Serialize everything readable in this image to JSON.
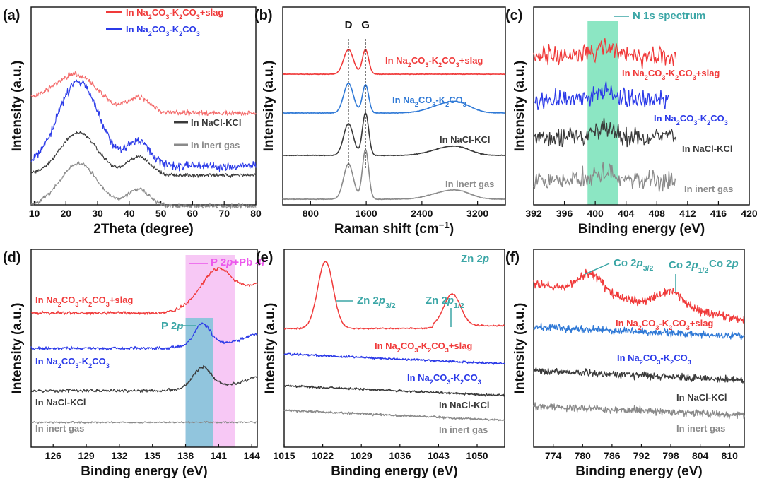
{
  "colors": {
    "red": "#f03a3a",
    "salmon": "#f46b6b",
    "blue": "#2b3ae8",
    "blue_light": "#2f79d6",
    "dark": "#3a3a3a",
    "gray": "#8a8a8a",
    "teal": "#3ba6a6",
    "green_band": "#6fe0b4",
    "magenta": "#ec57ec",
    "pink_band": "#f7c8f5",
    "cyan_band": "#7fc4d8"
  },
  "chart_data": [
    {
      "panel": "(a)",
      "type": "line",
      "xlabel": "2Theta (degree)",
      "ylabel": "Intensity (a.u.)",
      "xlim": [
        9,
        80
      ],
      "xticks": [
        10,
        20,
        30,
        40,
        50,
        60,
        70,
        80
      ],
      "legend": [
        {
          "parts": [
            [
              "In Na",
              ""
            ],
            [
              "2",
              "sub"
            ],
            [
              "CO",
              ""
            ],
            [
              "3",
              "sub"
            ],
            [
              "-K",
              ""
            ],
            [
              "2",
              "sub"
            ],
            [
              "CO",
              ""
            ],
            [
              "3",
              "sub"
            ],
            [
              "+slag",
              ""
            ]
          ],
          "color": "#f03a3a"
        },
        {
          "parts": [
            [
              "In Na",
              ""
            ],
            [
              "2",
              "sub"
            ],
            [
              "CO",
              ""
            ],
            [
              "3",
              "sub"
            ],
            [
              "-K",
              ""
            ],
            [
              "2",
              "sub"
            ],
            [
              "CO",
              ""
            ],
            [
              "3",
              "sub"
            ]
          ],
          "color": "#2b3ae8"
        }
      ],
      "series": [
        {
          "color": "#f46b6b",
          "offset": 150,
          "noise": 3.5,
          "peaks": [
            [
              23,
              55,
              7
            ],
            [
              43,
              22,
              3.5
            ]
          ],
          "end": 0
        },
        {
          "color": "#2b3ae8",
          "offset": 225,
          "noise": 6,
          "peaks": [
            [
              24,
              120,
              6.5
            ],
            [
              43,
              35,
              3.5
            ]
          ],
          "end": 0
        },
        {
          "color": "#3a3a3a",
          "offset": 238,
          "noise": 2.5,
          "peaks": [
            [
              24,
              60,
              6
            ],
            [
              43,
              26,
              3.5
            ]
          ],
          "end": 0
        },
        {
          "color": "#8a8a8a",
          "offset": 282,
          "noise": 3,
          "peaks": [
            [
              24,
              60,
              6
            ],
            [
              43,
              24,
              3.5
            ]
          ],
          "end": 0
        }
      ],
      "labels": [
        {
          "text": "In NaCl-KCl",
          "color": "#3a3a3a",
          "y": 178
        },
        {
          "text": "In inert gas",
          "color": "#8a8a8a",
          "y": 210
        }
      ]
    },
    {
      "panel": "(b)",
      "type": "line",
      "xlabel": "Raman shift (cm",
      "xlabel_sup": "−1",
      "xlabel_end": ")",
      "ylabel": "Intensity (a.u.)",
      "xlim": [
        400,
        3600
      ],
      "xticks": [
        800,
        1600,
        2400,
        3200
      ],
      "peak_labels": [
        "D",
        "G"
      ],
      "series": [
        {
          "color": "#f03a3a",
          "name_parts": [
            [
              "In Na",
              ""
            ],
            [
              "2",
              "sub"
            ],
            [
              "CO",
              ""
            ],
            [
              "3",
              "sub"
            ],
            [
              "-K",
              ""
            ],
            [
              "2",
              "sub"
            ],
            [
              "CO",
              ""
            ],
            [
              "3",
              "sub"
            ],
            [
              "+slag",
              ""
            ]
          ]
        },
        {
          "color": "#2f79d6",
          "name_parts": [
            [
              "In Na",
              ""
            ],
            [
              "2",
              "sub"
            ],
            [
              "CO",
              ""
            ],
            [
              "3",
              "sub"
            ],
            [
              "-K",
              ""
            ],
            [
              "2",
              "sub"
            ],
            [
              "CO",
              ""
            ],
            [
              "3",
              "sub"
            ]
          ]
        },
        {
          "color": "#3a3a3a",
          "name_parts": [
            [
              "In NaCl-KCl",
              ""
            ]
          ]
        },
        {
          "color": "#8a8a8a",
          "name_parts": [
            [
              "In inert gas",
              ""
            ]
          ]
        }
      ]
    },
    {
      "panel": "(c)",
      "type": "line",
      "xlabel": "Binding energy (eV)",
      "ylabel": "Intensity (a.u.)",
      "xlim": [
        392,
        420
      ],
      "xticks": [
        392,
        396,
        400,
        404,
        408,
        412,
        416,
        420
      ],
      "annotation": "N 1s spectrum",
      "band": [
        399,
        403
      ],
      "series": [
        {
          "color": "#f03a3a",
          "name_parts": [
            [
              "In Na",
              ""
            ],
            [
              "2",
              "sub"
            ],
            [
              "CO",
              ""
            ],
            [
              "3",
              "sub"
            ],
            [
              "-K",
              ""
            ],
            [
              "2",
              "sub"
            ],
            [
              "CO",
              ""
            ],
            [
              "3",
              "sub"
            ],
            [
              "+slag",
              ""
            ]
          ]
        },
        {
          "color": "#2b3ae8",
          "name_parts": [
            [
              "In Na",
              ""
            ],
            [
              "2",
              "sub"
            ],
            [
              "CO",
              ""
            ],
            [
              "3",
              "sub"
            ],
            [
              "-K",
              ""
            ],
            [
              "2",
              "sub"
            ],
            [
              "CO",
              ""
            ],
            [
              "3",
              "sub"
            ]
          ]
        },
        {
          "color": "#3a3a3a",
          "name_parts": [
            [
              "In NaCl-KCl",
              ""
            ]
          ]
        },
        {
          "color": "#8a8a8a",
          "name_parts": [
            [
              "In inert gas",
              ""
            ]
          ]
        }
      ]
    },
    {
      "panel": "(d)",
      "type": "line",
      "xlabel": "Binding energy (eV)",
      "ylabel": "Intensity (a.u.)",
      "xlim": [
        124,
        144.5
      ],
      "xticks": [
        126,
        129,
        132,
        135,
        138,
        141,
        144
      ],
      "annotation_pink": [
        [
          "P 2",
          ""
        ],
        [
          "p",
          "i"
        ],
        [
          "+Pb ",
          ""
        ],
        [
          "4f",
          "i"
        ]
      ],
      "annotation_cyan": [
        [
          "P 2",
          ""
        ],
        [
          "p",
          "i"
        ]
      ],
      "pink_band": [
        138,
        142.5
      ],
      "cyan_band": [
        138,
        140.5
      ],
      "series": [
        {
          "color": "#f03a3a",
          "name_parts": [
            [
              "In Na",
              ""
            ],
            [
              "2",
              "sub"
            ],
            [
              "CO",
              ""
            ],
            [
              "3",
              "sub"
            ],
            [
              "-K",
              ""
            ],
            [
              "2",
              "sub"
            ],
            [
              "CO",
              ""
            ],
            [
              "3",
              "sub"
            ],
            [
              "+slag",
              ""
            ]
          ]
        },
        {
          "color": "#2b3ae8",
          "name_parts": [
            [
              "In Na",
              ""
            ],
            [
              "2",
              "sub"
            ],
            [
              "CO",
              ""
            ],
            [
              "3",
              "sub"
            ],
            [
              "-K",
              ""
            ],
            [
              "2",
              "sub"
            ],
            [
              "CO",
              ""
            ],
            [
              "3",
              "sub"
            ]
          ]
        },
        {
          "color": "#3a3a3a",
          "name_parts": [
            [
              "In NaCl-KCl",
              ""
            ]
          ]
        },
        {
          "color": "#8a8a8a",
          "name_parts": [
            [
              "In inert gas",
              ""
            ]
          ]
        }
      ]
    },
    {
      "panel": "(e)",
      "type": "line",
      "xlabel": "Binding energy (eV)",
      "ylabel": "Intensity (a.u.)",
      "xlim": [
        1015,
        1055
      ],
      "xticks": [
        1015,
        1022,
        1029,
        1036,
        1043,
        1050
      ],
      "title_parts": [
        [
          "Zn 2",
          ""
        ],
        [
          "p",
          "i"
        ]
      ],
      "peak1_parts": [
        [
          "Zn 2",
          ""
        ],
        [
          "p",
          "i"
        ],
        [
          "3/2",
          "sub"
        ]
      ],
      "peak2_parts": [
        [
          "Zn 2",
          ""
        ],
        [
          "p",
          "i"
        ],
        [
          "1/2",
          "sub"
        ]
      ],
      "series": [
        {
          "color": "#f03a3a",
          "name_parts": [
            [
              "In Na",
              ""
            ],
            [
              "2",
              "sub"
            ],
            [
              "CO",
              ""
            ],
            [
              "3",
              "sub"
            ],
            [
              "-K",
              ""
            ],
            [
              "2",
              "sub"
            ],
            [
              "CO",
              ""
            ],
            [
              "3",
              "sub"
            ],
            [
              "+slag",
              ""
            ]
          ]
        },
        {
          "color": "#2b3ae8",
          "name_parts": [
            [
              "In Na",
              ""
            ],
            [
              "2",
              "sub"
            ],
            [
              "CO",
              ""
            ],
            [
              "3",
              "sub"
            ],
            [
              "-K",
              ""
            ],
            [
              "2",
              "sub"
            ],
            [
              "CO",
              ""
            ],
            [
              "3",
              "sub"
            ]
          ]
        },
        {
          "color": "#3a3a3a",
          "name_parts": [
            [
              "In NaCl-KCl",
              ""
            ]
          ]
        },
        {
          "color": "#8a8a8a",
          "name_parts": [
            [
              "In inert gas",
              ""
            ]
          ]
        }
      ]
    },
    {
      "panel": "(f)",
      "type": "line",
      "xlabel": "Binding energy (eV)",
      "ylabel": "Intensity (a.u.)",
      "xlim": [
        770,
        813
      ],
      "xticks": [
        774,
        780,
        786,
        792,
        798,
        804,
        810
      ],
      "title_parts": [
        [
          "Co 2",
          ""
        ],
        [
          "p",
          "i"
        ]
      ],
      "peak1_parts": [
        [
          "Co 2",
          ""
        ],
        [
          "p",
          "i"
        ],
        [
          "3/2",
          "sub"
        ]
      ],
      "peak2_parts": [
        [
          "Co 2",
          ""
        ],
        [
          "p",
          "i"
        ],
        [
          "1/2",
          "sub"
        ]
      ],
      "series": [
        {
          "color": "#f03a3a",
          "name_parts": [
            [
              "In Na",
              ""
            ],
            [
              "2",
              "sub"
            ],
            [
              "CO",
              ""
            ],
            [
              "3",
              "sub"
            ],
            [
              "-K",
              ""
            ],
            [
              "2",
              "sub"
            ],
            [
              "CO",
              ""
            ],
            [
              "3",
              "sub"
            ],
            [
              "+slag",
              ""
            ]
          ]
        },
        {
          "color": "#2b3ae8",
          "name_parts": [
            [
              "In Na",
              ""
            ],
            [
              "2",
              "sub"
            ],
            [
              "CO",
              ""
            ],
            [
              "3",
              "sub"
            ],
            [
              "-K",
              ""
            ],
            [
              "2",
              "sub"
            ],
            [
              "CO",
              ""
            ],
            [
              "3",
              "sub"
            ]
          ]
        },
        {
          "color": "#3a3a3a",
          "name_parts": [
            [
              "In NaCl-KCl",
              ""
            ]
          ]
        },
        {
          "color": "#8a8a8a",
          "name_parts": [
            [
              "In inert gas",
              ""
            ]
          ]
        }
      ]
    }
  ]
}
